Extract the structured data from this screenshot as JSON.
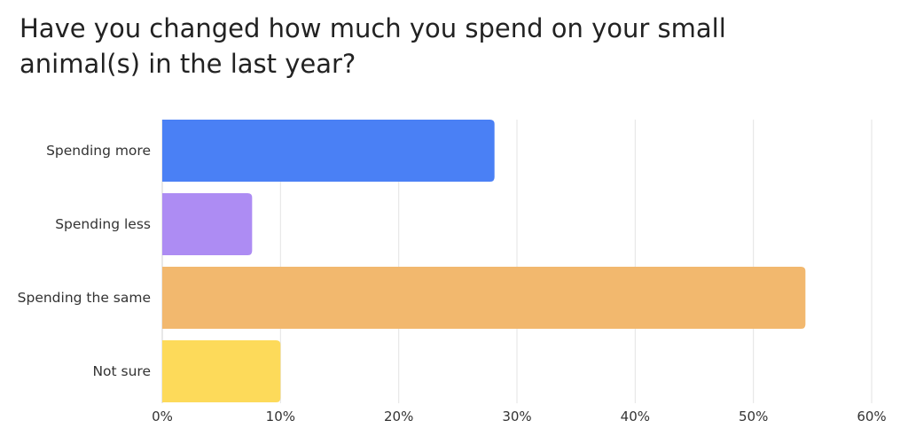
{
  "chart_data": {
    "type": "bar",
    "orientation": "horizontal",
    "title": "Have you changed how much you spend on your small animal(s) in the last year?",
    "categories": [
      "Spending more",
      "Spending less",
      "Spending the same",
      "Not sure"
    ],
    "values": [
      28.1,
      7.6,
      54.4,
      10.0
    ],
    "unit": "%",
    "xlim": [
      0,
      60
    ],
    "xticks": [
      0,
      10,
      20,
      30,
      40,
      50,
      60
    ],
    "tick_labels": [
      "0%",
      "10%",
      "20%",
      "30%",
      "40%",
      "50%",
      "60%"
    ],
    "colors": [
      "#4a80f5",
      "#ad8cf3",
      "#f2b86e",
      "#fdda5a"
    ],
    "grid": "vertical",
    "legend": "none"
  }
}
